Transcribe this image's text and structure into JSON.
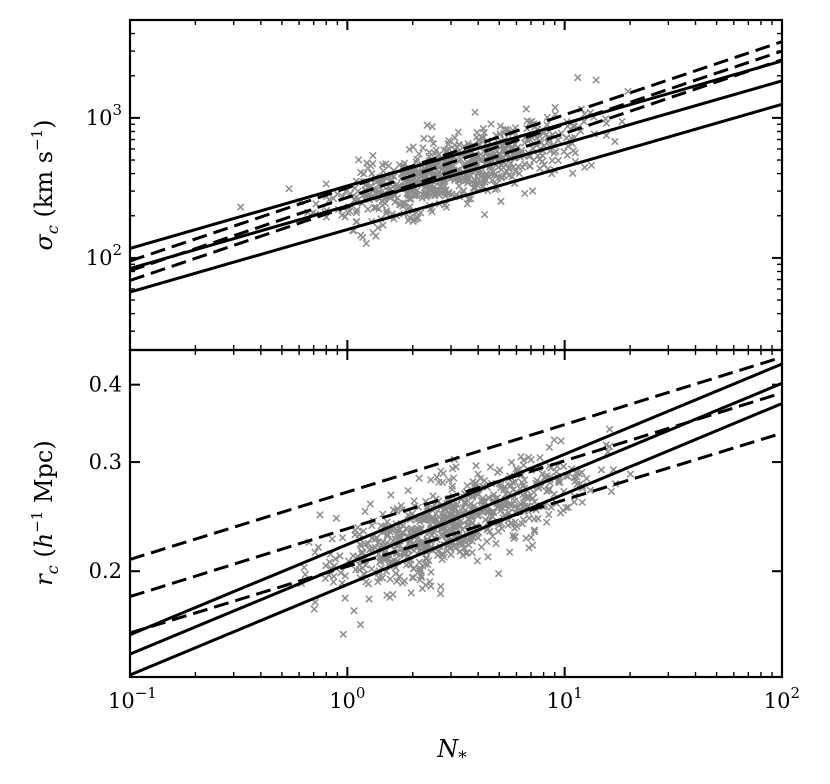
{
  "figure": {
    "xlabel_symbol": "N",
    "xlabel_sub": "*"
  },
  "colors": {
    "scatter": "#8c8c8c",
    "line": "#000000"
  },
  "chart_data": [
    {
      "type": "scatter",
      "panel": "top",
      "x_scale": "log",
      "y_scale": "log",
      "xlim": [
        0.1,
        100
      ],
      "ylim": [
        22,
        5000
      ],
      "x_ticks": [
        {
          "value": 0.1,
          "base": "10",
          "exp": "−1"
        },
        {
          "value": 1,
          "base": "10",
          "exp": "0"
        },
        {
          "value": 10,
          "base": "10",
          "exp": "1"
        },
        {
          "value": 100,
          "base": "10",
          "exp": "2"
        }
      ],
      "y_ticks": [
        {
          "value": 100,
          "base": "10",
          "exp": "2"
        },
        {
          "value": 1000,
          "base": "10",
          "exp": "3"
        }
      ],
      "ylabel": {
        "sym": "σ",
        "sub": "c",
        "unit_open": " (km s",
        "unit_exp": "−1",
        "unit_close": ")"
      },
      "marker": "x",
      "scatter_stats": {
        "n_points": 700,
        "x_log_mean": 0.48,
        "x_log_sd": 0.28,
        "x_min": 0.3,
        "x_max": 20,
        "y_at_x1": 255,
        "slope_loglog": 0.44,
        "y_scatter_dex": 0.12
      },
      "lines": [
        {
          "style": "solid",
          "x": [
            0.1,
            100
          ],
          "y": [
            117,
            2550
          ]
        },
        {
          "style": "solid",
          "x": [
            0.1,
            100
          ],
          "y": [
            84,
            1840
          ]
        },
        {
          "style": "solid",
          "x": [
            0.1,
            100
          ],
          "y": [
            57,
            1250
          ]
        },
        {
          "style": "dashed",
          "x": [
            0.1,
            100
          ],
          "y": [
            95,
            3500
          ]
        },
        {
          "style": "dashed",
          "x": [
            0.1,
            100
          ],
          "y": [
            81,
            3000
          ]
        },
        {
          "style": "dashed",
          "x": [
            0.1,
            100
          ],
          "y": [
            69,
            2600
          ]
        }
      ]
    },
    {
      "type": "scatter",
      "panel": "bottom",
      "x_scale": "log",
      "y_scale": "log",
      "xlim": [
        0.1,
        100
      ],
      "ylim": [
        0.135,
        0.455
      ],
      "x_ticks": [
        {
          "value": 0.1,
          "base": "10",
          "exp": "−1"
        },
        {
          "value": 1,
          "base": "10",
          "exp": "0"
        },
        {
          "value": 10,
          "base": "10",
          "exp": "1"
        },
        {
          "value": 100,
          "base": "10",
          "exp": "2"
        }
      ],
      "y_ticks": [
        {
          "value": 0.2,
          "label": "0.2"
        },
        {
          "value": 0.3,
          "label": "0.3"
        },
        {
          "value": 0.4,
          "label": "0.4"
        }
      ],
      "ylabel": {
        "sym": "r",
        "sub": "c",
        "unit_open": " (",
        "unit_h": "h",
        "unit_exp": "−1",
        "unit_close": " Mpc)"
      },
      "marker": "x",
      "scatter_stats": {
        "n_points": 700,
        "x_log_mean": 0.48,
        "x_log_sd": 0.28,
        "x_min": 0.5,
        "x_max": 25,
        "y_at_x1": 0.208,
        "slope_loglog": 0.125,
        "y_scatter_dex": 0.035
      },
      "lines": [
        {
          "style": "solid",
          "x": [
            0.1,
            100
          ],
          "y": [
            0.158,
            0.432
          ]
        },
        {
          "style": "solid",
          "x": [
            0.1,
            100
          ],
          "y": [
            0.147,
            0.402
          ]
        },
        {
          "style": "solid",
          "x": [
            0.1,
            100
          ],
          "y": [
            0.136,
            0.373
          ]
        },
        {
          "style": "dashed",
          "x": [
            0.1,
            100
          ],
          "y": [
            0.209,
            0.443
          ]
        },
        {
          "style": "dashed",
          "x": [
            0.1,
            100
          ],
          "y": [
            0.182,
            0.388
          ]
        },
        {
          "style": "dashed",
          "x": [
            0.1,
            100
          ],
          "y": [
            0.159,
            0.334
          ]
        }
      ]
    }
  ]
}
